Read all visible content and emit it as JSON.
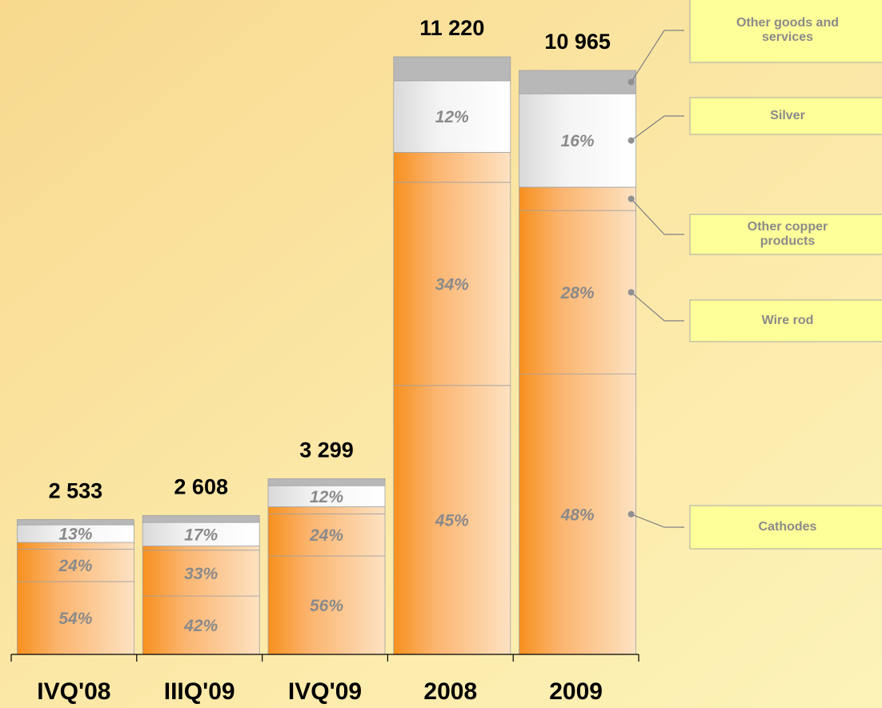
{
  "chart_data": {
    "type": "stacked-bar",
    "categories": [
      "IVQ'08",
      "IIIQ'09",
      "IVQ'09",
      "2008",
      "2009"
    ],
    "totals": {
      "values": [
        2533,
        2608,
        3299,
        11220,
        10965
      ],
      "value_labels": [
        "2 533",
        "2 608",
        "3 299",
        "11 220",
        "10 965"
      ]
    },
    "series": [
      {
        "name": "Cathodes",
        "color": "#f7a24a",
        "values": [
          54,
          42,
          56,
          45,
          48
        ],
        "value_labels": [
          "54%",
          "42%",
          "56%",
          "45%",
          "48%"
        ]
      },
      {
        "name": "Wire rod",
        "color": "#f7a24a",
        "values": [
          24,
          33,
          24,
          34,
          28
        ],
        "value_labels": [
          "24%",
          "33%",
          "24%",
          "34%",
          "28%"
        ]
      },
      {
        "name": "Other copper products",
        "color": "#f7a24a",
        "values": [
          5,
          3,
          4,
          5,
          4
        ],
        "value_labels": [
          null,
          null,
          null,
          null,
          null
        ]
      },
      {
        "name": "Silver",
        "color": "#f2f2f2",
        "values": [
          13,
          17,
          12,
          12,
          16
        ],
        "value_labels": [
          "13%",
          "17%",
          "12%",
          "12%",
          "16%"
        ]
      },
      {
        "name": "Other goods and services",
        "color": "#b8b8b8",
        "values": [
          4,
          5,
          4,
          4,
          4
        ],
        "value_labels": [
          null,
          null,
          null,
          null,
          null
        ]
      }
    ]
  }
}
